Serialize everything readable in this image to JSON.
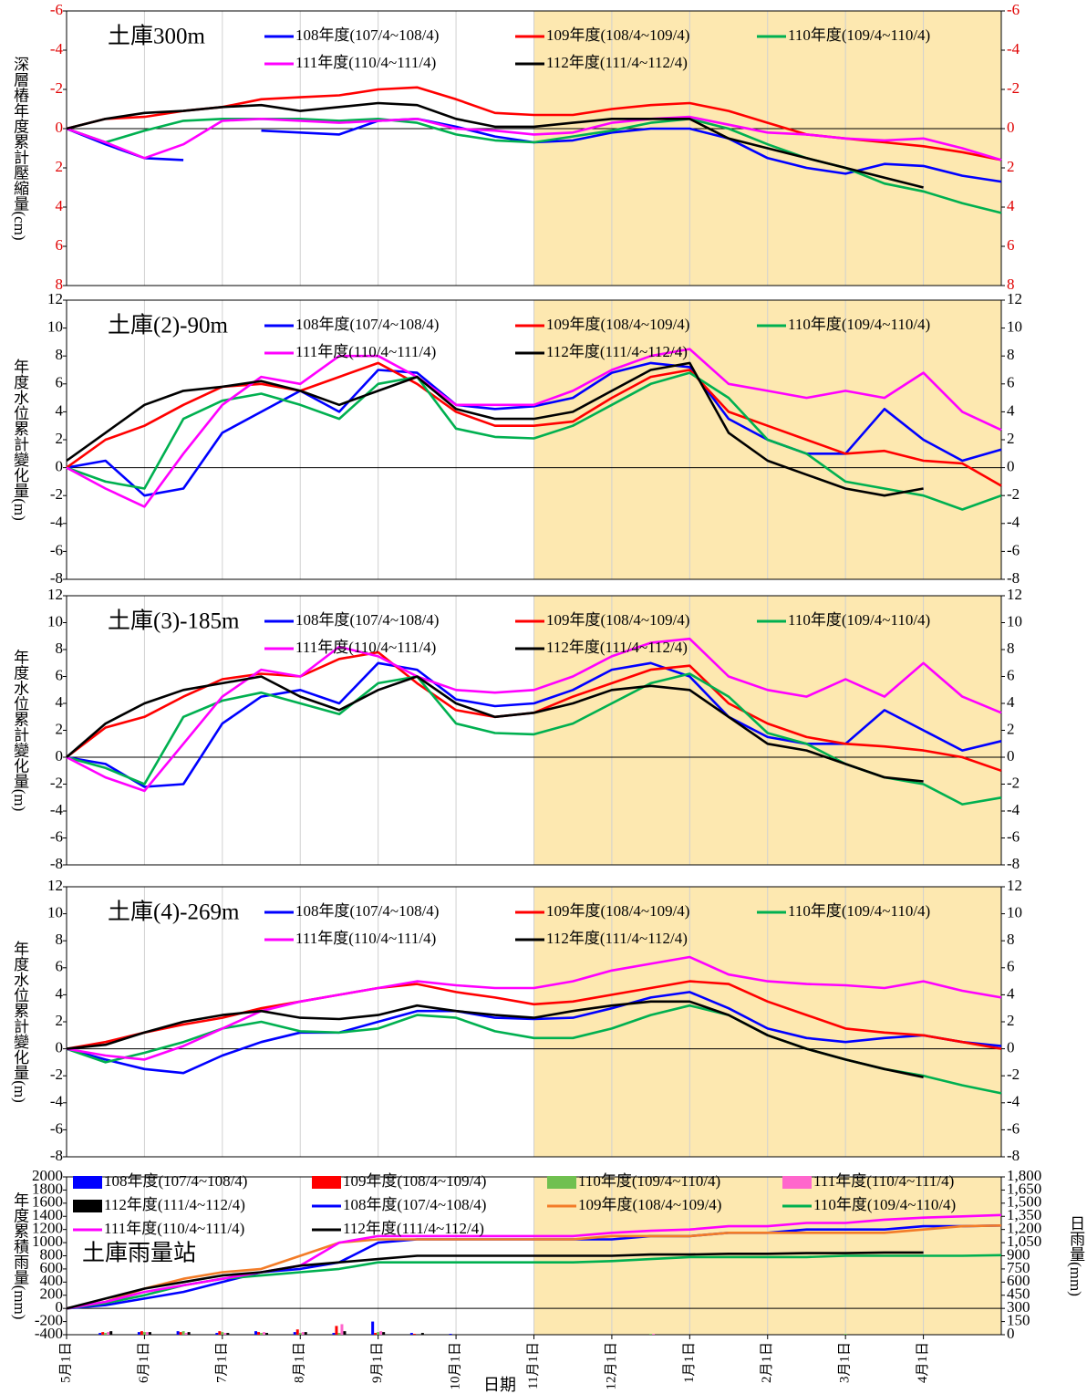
{
  "chart_data": [
    {
      "type": "line",
      "title": "土庫300m",
      "y_label": "深層樁年度累計壓縮量(cm)",
      "ylim": [
        8,
        -6
      ],
      "yticks": [
        -6,
        -4,
        -2,
        0,
        2,
        4,
        6,
        8
      ],
      "series": [
        {
          "name": "108年度(107/4~108/4)",
          "color": "#0000ff",
          "values": [
            0,
            0.8,
            1.5,
            1.6,
            null,
            0.1,
            0.2,
            0.3,
            -0.4,
            -0.5,
            -0.1,
            0.4,
            0.7,
            0.6,
            0.2,
            0,
            0,
            0.5,
            1.5,
            2.0,
            2.3,
            1.8,
            1.9,
            2.4,
            2.7
          ]
        },
        {
          "name": "109年度(108/4~109/4)",
          "color": "#ff0000",
          "values": [
            0,
            -0.5,
            -0.6,
            -0.9,
            -1.1,
            -1.5,
            -1.6,
            -1.7,
            -2.0,
            -2.1,
            -1.5,
            -0.8,
            -0.7,
            -0.7,
            -1.0,
            -1.2,
            -1.3,
            -0.9,
            -0.3,
            0.3,
            0.5,
            0.7,
            0.9,
            1.2,
            1.6
          ]
        },
        {
          "name": "110年度(109/4~110/4)",
          "color": "#00b050",
          "values": [
            0,
            0.7,
            0.1,
            -0.4,
            -0.5,
            -0.5,
            -0.5,
            -0.4,
            -0.5,
            -0.3,
            0.3,
            0.6,
            0.7,
            0.4,
            0.1,
            -0.3,
            -0.5,
            0,
            0.8,
            1.5,
            2.0,
            2.8,
            3.2,
            3.8,
            4.3
          ]
        },
        {
          "name": "111年度(110/4~111/4)",
          "color": "#ff00ff",
          "values": [
            0,
            0.7,
            1.5,
            0.8,
            -0.4,
            -0.5,
            -0.4,
            -0.3,
            -0.4,
            -0.5,
            0,
            0.1,
            0.3,
            0.2,
            -0.3,
            -0.5,
            -0.6,
            -0.2,
            0.2,
            0.3,
            0.5,
            0.6,
            0.5,
            1.0,
            1.6
          ]
        },
        {
          "name": "112年度(111/4~112/4)",
          "color": "#000000",
          "values": [
            0,
            -0.5,
            -0.8,
            -0.9,
            -1.1,
            -1.2,
            -0.9,
            -1.1,
            -1.3,
            -1.2,
            -0.5,
            -0.1,
            -0.1,
            -0.3,
            -0.5,
            -0.5,
            -0.5,
            0.5,
            1.0,
            1.5,
            2.0,
            2.5,
            3.0,
            null,
            null
          ]
        }
      ]
    },
    {
      "type": "line",
      "title": "土庫(2)-90m",
      "y_label": "年度水位累計變化量(m)",
      "ylim": [
        -8,
        12
      ],
      "yticks": [
        -8,
        -6,
        -4,
        -2,
        0,
        2,
        4,
        6,
        8,
        10,
        12
      ],
      "series": [
        {
          "name": "108年度(107/4~108/4)",
          "color": "#0000ff",
          "values": [
            0,
            0.5,
            -2.0,
            -1.5,
            2.5,
            4.0,
            5.5,
            4.0,
            7.0,
            6.8,
            4.5,
            4.2,
            4.4,
            5.0,
            6.8,
            7.5,
            7.2,
            3.5,
            2.0,
            1.0,
            1.0,
            4.2,
            2.0,
            0.5,
            1.3
          ]
        },
        {
          "name": "109年度(108/4~109/4)",
          "color": "#ff0000",
          "values": [
            0,
            2.0,
            3.0,
            4.5,
            5.8,
            6.0,
            5.5,
            6.5,
            7.5,
            6.0,
            4.0,
            3.0,
            3.0,
            3.3,
            5.0,
            6.5,
            7.0,
            4.0,
            3.0,
            2.0,
            1.0,
            1.2,
            0.5,
            0.3,
            -1.3
          ]
        },
        {
          "name": "110年度(109/4~110/4)",
          "color": "#00b050",
          "values": [
            0,
            -1.0,
            -1.5,
            3.5,
            4.8,
            5.3,
            4.5,
            3.5,
            6.0,
            6.5,
            2.8,
            2.2,
            2.1,
            3.0,
            4.5,
            6.0,
            6.8,
            5.0,
            2.0,
            1.0,
            -1.0,
            -1.5,
            -2.0,
            -3.0,
            -2.0
          ]
        },
        {
          "name": "111年度(110/4~111/4)",
          "color": "#ff00ff",
          "values": [
            0,
            -1.5,
            -2.8,
            1.0,
            4.5,
            6.5,
            6.0,
            8.0,
            8.0,
            6.5,
            4.5,
            4.5,
            4.5,
            5.5,
            7.0,
            8.0,
            8.5,
            6.0,
            5.5,
            5.0,
            5.5,
            5.0,
            6.8,
            4.0,
            2.7
          ]
        },
        {
          "name": "112年度(111/4~112/4)",
          "color": "#000000",
          "values": [
            0.5,
            2.5,
            4.5,
            5.5,
            5.8,
            6.2,
            5.5,
            4.5,
            5.5,
            6.5,
            4.2,
            3.5,
            3.5,
            4.0,
            5.5,
            7.0,
            7.5,
            2.5,
            0.5,
            -0.5,
            -1.5,
            -2.0,
            -1.5,
            null,
            null
          ]
        }
      ]
    },
    {
      "type": "line",
      "title": "土庫(3)-185m",
      "y_label": "年度水位累計變化量(m)",
      "ylim": [
        -8,
        12
      ],
      "yticks": [
        -8,
        -6,
        -4,
        -2,
        0,
        2,
        4,
        6,
        8,
        10,
        12
      ],
      "series": [
        {
          "name": "108年度(107/4~108/4)",
          "color": "#0000ff",
          "values": [
            0,
            -0.5,
            -2.2,
            -2.0,
            2.5,
            4.5,
            5.0,
            4.0,
            7.0,
            6.5,
            4.3,
            3.8,
            4.0,
            5.0,
            6.5,
            7.0,
            6.0,
            3.0,
            1.5,
            1.0,
            1.0,
            3.5,
            2.0,
            0.5,
            1.2
          ]
        },
        {
          "name": "109年度(108/4~109/4)",
          "color": "#ff0000",
          "values": [
            0,
            2.2,
            3.0,
            4.5,
            5.8,
            6.2,
            6.0,
            7.3,
            7.8,
            5.5,
            3.5,
            3.0,
            3.3,
            4.5,
            5.5,
            6.5,
            6.8,
            4.0,
            2.5,
            1.5,
            1.0,
            0.8,
            0.5,
            0,
            -1.0
          ]
        },
        {
          "name": "110年度(109/4~110/4)",
          "color": "#00b050",
          "values": [
            0,
            -0.8,
            -2.0,
            3.0,
            4.2,
            4.8,
            4.0,
            3.2,
            5.5,
            6.0,
            2.5,
            1.8,
            1.7,
            2.5,
            4.0,
            5.5,
            6.2,
            4.5,
            1.8,
            1.0,
            -0.5,
            -1.5,
            -2.0,
            -3.5,
            -3.0
          ]
        },
        {
          "name": "111年度(110/4~111/4)",
          "color": "#ff00ff",
          "values": [
            0,
            -1.5,
            -2.5,
            1.0,
            4.5,
            6.5,
            6.0,
            8.2,
            7.5,
            6.0,
            5.0,
            4.8,
            5.0,
            6.0,
            7.5,
            8.5,
            8.8,
            6.0,
            5.0,
            4.5,
            5.8,
            4.5,
            7.0,
            4.5,
            3.3
          ]
        },
        {
          "name": "112年度(111/4~112/4)",
          "color": "#000000",
          "values": [
            0,
            2.5,
            4.0,
            5.0,
            5.5,
            6.0,
            4.5,
            3.5,
            5.0,
            6.0,
            4.0,
            3.0,
            3.3,
            4.0,
            5.0,
            5.3,
            5.0,
            3.0,
            1.0,
            0.5,
            -0.5,
            -1.5,
            -1.8,
            null,
            null
          ]
        }
      ]
    },
    {
      "type": "line",
      "title": "土庫(4)-269m",
      "y_label": "年度水位累計變化量(m)",
      "ylim": [
        -8,
        12
      ],
      "yticks": [
        -8,
        -6,
        -4,
        -2,
        0,
        2,
        4,
        6,
        8,
        10,
        12
      ],
      "series": [
        {
          "name": "108年度(107/4~108/4)",
          "color": "#0000ff",
          "values": [
            0,
            -0.8,
            -1.5,
            -1.8,
            -0.5,
            0.5,
            1.2,
            1.2,
            2.0,
            2.8,
            2.8,
            2.3,
            2.2,
            2.3,
            3.0,
            3.8,
            4.2,
            3.0,
            1.5,
            0.8,
            0.5,
            0.8,
            1.0,
            0.5,
            0.2
          ]
        },
        {
          "name": "109年度(108/4~109/4)",
          "color": "#ff0000",
          "values": [
            0,
            0.5,
            1.2,
            1.8,
            2.3,
            3.0,
            3.5,
            4.0,
            4.5,
            4.8,
            4.2,
            3.8,
            3.3,
            3.5,
            4.0,
            4.5,
            5.0,
            4.8,
            3.5,
            2.5,
            1.5,
            1.2,
            1.0,
            0.5,
            0
          ]
        },
        {
          "name": "110年度(109/4~110/4)",
          "color": "#00b050",
          "values": [
            0,
            -1.0,
            -0.3,
            0.5,
            1.5,
            2.0,
            1.3,
            1.2,
            1.5,
            2.5,
            2.3,
            1.3,
            0.8,
            0.8,
            1.5,
            2.5,
            3.2,
            2.5,
            1.0,
            0,
            -0.8,
            -1.5,
            -2.0,
            -2.7,
            -3.3
          ]
        },
        {
          "name": "111年度(110/4~111/4)",
          "color": "#ff00ff",
          "values": [
            0,
            -0.5,
            -0.8,
            0.2,
            1.5,
            2.8,
            3.5,
            4.0,
            4.5,
            5.0,
            4.7,
            4.5,
            4.5,
            5.0,
            5.8,
            6.3,
            6.8,
            5.5,
            5.0,
            4.8,
            4.7,
            4.5,
            5.0,
            4.3,
            3.8
          ]
        },
        {
          "name": "112年度(111/4~112/4)",
          "color": "#000000",
          "values": [
            0,
            0.3,
            1.2,
            2.0,
            2.5,
            2.8,
            2.3,
            2.2,
            2.5,
            3.2,
            2.8,
            2.5,
            2.3,
            2.8,
            3.2,
            3.5,
            3.5,
            2.5,
            1.0,
            0,
            -0.8,
            -1.5,
            -2.1,
            null,
            null
          ]
        }
      ]
    },
    {
      "type": "combo",
      "title": "土庫雨量站",
      "y_label": "年度累積雨量(mm)",
      "y2_label": "日雨量(mm)",
      "x_label": "日期",
      "categories": [
        "5月1日",
        null,
        "6月1日",
        null,
        "7月1日",
        null,
        "8月1日",
        null,
        "9月1日",
        null,
        "10月1日",
        null,
        "11月1日",
        null,
        "12月1日",
        null,
        "1月1日",
        null,
        "2月1日",
        null,
        "3月1日",
        null,
        "4月1日",
        null,
        null
      ],
      "ylim": [
        -400,
        2000
      ],
      "yticks": [
        -400,
        -200,
        0,
        200,
        400,
        600,
        800,
        1000,
        1200,
        1400,
        1600,
        1800,
        2000
      ],
      "y2lim": [
        0,
        1800
      ],
      "y2ticks": [
        0,
        150,
        300,
        450,
        600,
        750,
        900,
        {
          "value": 1050,
          "label": "1,050"
        },
        {
          "value": 1200,
          "label": "1,200"
        },
        {
          "value": 1350,
          "label": "1,350"
        },
        {
          "value": 1500,
          "label": "1,500"
        },
        {
          "value": 1650,
          "label": "1,650"
        },
        {
          "value": 1800,
          "label": "1,800"
        }
      ],
      "series": [
        {
          "name": "108年度(107/4~108/4)",
          "type": "bar",
          "axis": "y2",
          "color": "#0000ff",
          "values": [
            0,
            20,
            30,
            40,
            20,
            40,
            30,
            20,
            150,
            20,
            10,
            0,
            0,
            0,
            0,
            0,
            0,
            0,
            0,
            0,
            0,
            0,
            0,
            0,
            0
          ]
        },
        {
          "name": "109年度(108/4~109/4)",
          "type": "bar",
          "axis": "y2",
          "color": "#ff0000",
          "values": [
            0,
            30,
            40,
            30,
            40,
            30,
            60,
            100,
            20,
            10,
            0,
            0,
            0,
            0,
            0,
            0,
            0,
            0,
            0,
            0,
            0,
            0,
            0,
            0,
            0
          ]
        },
        {
          "name": "110年度(109/4~110/4)",
          "type": "bar",
          "axis": "y2",
          "color": "#70c050",
          "values": [
            0,
            20,
            30,
            40,
            30,
            20,
            20,
            20,
            30,
            0,
            0,
            0,
            0,
            0,
            0,
            10,
            0,
            0,
            0,
            0,
            10,
            0,
            0,
            0,
            0
          ]
        },
        {
          "name": "111年度(110/4~111/4)",
          "type": "bar",
          "axis": "y2",
          "color": "#ff66cc",
          "values": [
            0,
            30,
            30,
            20,
            20,
            30,
            30,
            120,
            40,
            0,
            0,
            0,
            0,
            0,
            0,
            10,
            0,
            0,
            0,
            0,
            0,
            0,
            0,
            0,
            0
          ]
        },
        {
          "name": "112年度(111/4~112/4)",
          "type": "bar",
          "axis": "y2",
          "color": "#000000",
          "values": [
            0,
            40,
            30,
            30,
            20,
            20,
            30,
            40,
            30,
            20,
            0,
            0,
            0,
            0,
            0,
            0,
            0,
            0,
            0,
            0,
            0,
            0,
            0,
            null,
            null
          ]
        },
        {
          "name": "108年度(107/4~108/4)",
          "type": "line",
          "color": "#0000ff",
          "values": [
            0,
            50,
            150,
            250,
            400,
            550,
            600,
            700,
            1000,
            1050,
            1050,
            1050,
            1050,
            1050,
            1050,
            1100,
            1100,
            1150,
            1150,
            1200,
            1200,
            1200,
            1250,
            1250,
            1260
          ]
        },
        {
          "name": "109年度(108/4~109/4)",
          "type": "line",
          "color": "#f37c28",
          "values": [
            0,
            100,
            300,
            450,
            550,
            600,
            800,
            1000,
            1050,
            1050,
            1050,
            1050,
            1050,
            1050,
            1100,
            1100,
            1100,
            1150,
            1150,
            1150,
            1150,
            1150,
            1200,
            1250,
            1260
          ]
        },
        {
          "name": "110年度(109/4~110/4)",
          "type": "line",
          "color": "#00b050",
          "values": [
            0,
            80,
            200,
            350,
            450,
            500,
            550,
            600,
            700,
            700,
            700,
            700,
            700,
            700,
            720,
            750,
            780,
            780,
            780,
            780,
            800,
            800,
            800,
            800,
            810
          ]
        },
        {
          "name": "111年度(110/4~111/4)",
          "type": "line",
          "color": "#ff00ff",
          "values": [
            0,
            100,
            250,
            350,
            450,
            550,
            650,
            1000,
            1100,
            1100,
            1100,
            1100,
            1100,
            1100,
            1150,
            1180,
            1200,
            1250,
            1250,
            1300,
            1300,
            1350,
            1380,
            1400,
            1420
          ]
        },
        {
          "name": "112年度(111/4~112/4)",
          "type": "line",
          "color": "#000000",
          "values": [
            0,
            150,
            300,
            400,
            500,
            550,
            650,
            700,
            750,
            800,
            800,
            800,
            800,
            800,
            800,
            820,
            820,
            830,
            830,
            840,
            840,
            850,
            850,
            null,
            null
          ]
        }
      ]
    }
  ]
}
